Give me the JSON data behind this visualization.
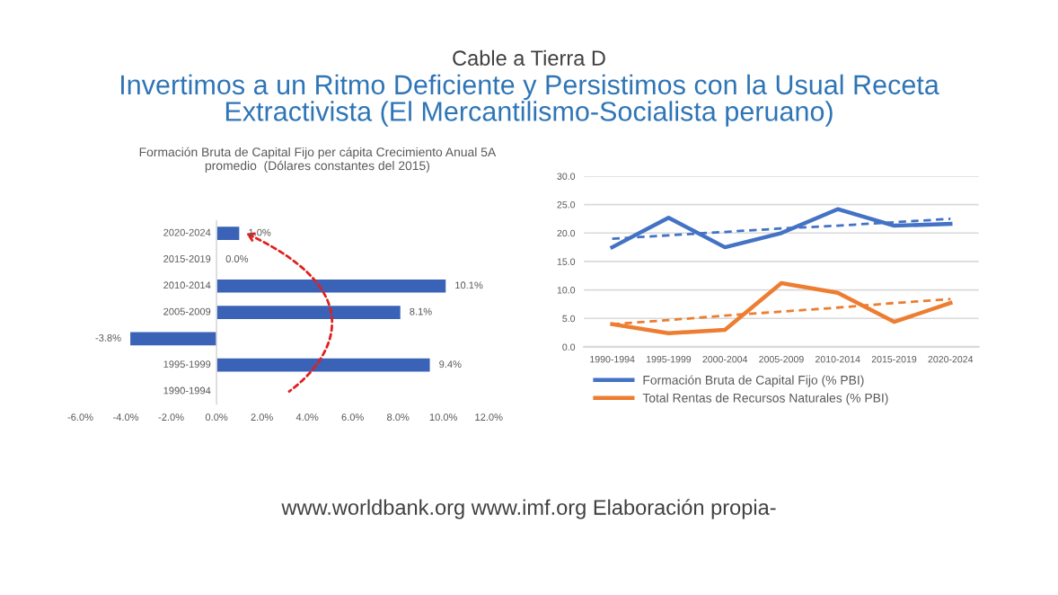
{
  "chart_data": [
    {
      "type": "bar",
      "orientation": "horizontal",
      "title": "Formación Bruta de Capital Fijo per cápita Crecimiento Anual 5A promedio  (Dólares constantes del 2015)",
      "categories": [
        "2020-2024",
        "2015-2019",
        "2010-2014",
        "2005-2009",
        null,
        "1995-1999",
        "1990-1994"
      ],
      "values": [
        1.0,
        0.0,
        10.1,
        8.1,
        -3.8,
        9.4,
        null
      ],
      "color": "#3a62b7",
      "value_labels": [
        "1.0%",
        "0.0%",
        "10.1%",
        "8.1%",
        "-3.8%",
        "9.4%",
        null
      ],
      "xlim": [
        -6,
        12
      ],
      "xticks": [
        {
          "value": -6,
          "label": "-6.0%"
        },
        {
          "value": -4,
          "label": "-4.0%"
        },
        {
          "value": -2,
          "label": "-2.0%"
        },
        {
          "value": 0,
          "label": "0.0%"
        },
        {
          "value": 2,
          "label": "2.0%"
        },
        {
          "value": 4,
          "label": "4.0%"
        },
        {
          "value": 6,
          "label": "6.0%"
        },
        {
          "value": 8,
          "label": "8.0%"
        },
        {
          "value": 10,
          "label": "10.0%"
        },
        {
          "value": 12,
          "label": "12.0%"
        }
      ],
      "grid": false
    },
    {
      "type": "line",
      "title": "Cable a Tierra D",
      "subtitle": "Invertimos a un Ritmo Deficiente y Persistimos con la Usual Receta Extractivista (El Mercantilismo-Socialista peruano)",
      "categories": [
        "1990-1994",
        "1995-1999",
        "2000-2004",
        "2005-2009",
        "2010-2014",
        "2015-2019",
        "2020-2024"
      ],
      "series": [
        {
          "name": "Formación Bruta de Capital Fijo (% PBI)",
          "color": "#4472c4",
          "values": [
            17.5,
            22.7,
            17.5,
            20.0,
            24.2,
            21.3,
            21.6
          ]
        },
        {
          "name": "Total Rentas de Recursos Naturales (% PBI)",
          "color": "#ed7d31",
          "values": [
            4.0,
            2.4,
            3.0,
            11.2,
            9.5,
            4.4,
            7.7
          ]
        },
        {
          "color": "#4472c4",
          "line_style": "dashed",
          "values": [
            19.0,
            19.6,
            20.2,
            20.8,
            21.3,
            21.9,
            22.5
          ]
        },
        {
          "color": "#ed7d31",
          "line_style": "dashed",
          "values": [
            4.0,
            4.7,
            5.5,
            6.2,
            6.9,
            7.7,
            8.4
          ]
        }
      ],
      "ylim": [
        0,
        30
      ],
      "yticks": [
        {
          "value": 0,
          "label": "0.0"
        },
        {
          "value": 5,
          "label": "5.0"
        },
        {
          "value": 10,
          "label": "10.0"
        },
        {
          "value": 15,
          "label": "15.0"
        },
        {
          "value": 20,
          "label": "20.0"
        },
        {
          "value": 25,
          "label": "25.0"
        },
        {
          "value": 30,
          "label": "30.0"
        }
      ],
      "grid": "y",
      "legend": "bottom",
      "annotations": [
        "www.worldbank.org www.imf.org Elaboración propia-"
      ]
    }
  ]
}
